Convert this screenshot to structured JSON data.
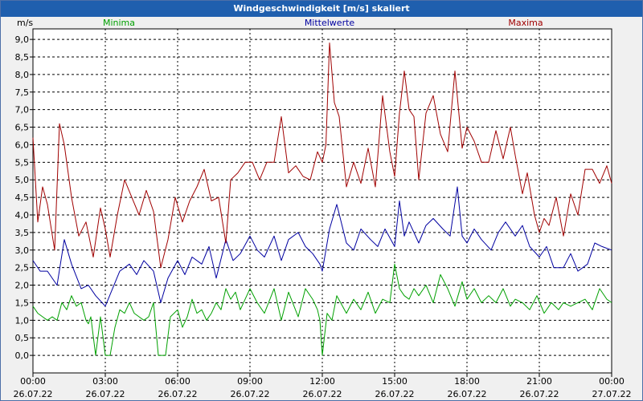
{
  "window": {
    "title": "Windgeschwindigkeit [m/s] skaliert"
  },
  "chart_data": {
    "type": "line",
    "title": "Windgeschwindigkeit [m/s] skaliert",
    "ylabel": "m/s",
    "xlabel": "",
    "ylim": [
      -0.5,
      9.3
    ],
    "xlim": [
      0,
      24
    ],
    "yticks": [
      "0,0",
      "0,5",
      "1,0",
      "1,5",
      "2,0",
      "2,5",
      "3,0",
      "3,5",
      "4,0",
      "4,5",
      "5,0",
      "5,5",
      "6,0",
      "6,5",
      "7,0",
      "7,5",
      "8,0",
      "8,5",
      "9,0"
    ],
    "xticks": [
      {
        "time": "00:00",
        "date": "26.07.22"
      },
      {
        "time": "03:00",
        "date": "26.07.22"
      },
      {
        "time": "06:00",
        "date": "26.07.22"
      },
      {
        "time": "09:00",
        "date": "26.07.22"
      },
      {
        "time": "12:00",
        "date": "26.07.22"
      },
      {
        "time": "15:00",
        "date": "26.07.22"
      },
      {
        "time": "18:00",
        "date": "26.07.22"
      },
      {
        "time": "21:00",
        "date": "26.07.22"
      },
      {
        "time": "00:00",
        "date": "27.07.22"
      }
    ],
    "grid": true,
    "legend_position": "top",
    "series": [
      {
        "name": "Minima",
        "color": "#00a000",
        "x": [
          0,
          0.2,
          0.4,
          0.6,
          0.8,
          1,
          1.2,
          1.4,
          1.6,
          1.8,
          2,
          2.2,
          2.3,
          2.4,
          2.6,
          2.8,
          3,
          3.2,
          3.4,
          3.6,
          3.8,
          4,
          4.2,
          4.4,
          4.6,
          4.8,
          5,
          5.2,
          5.5,
          5.7,
          6,
          6.2,
          6.4,
          6.6,
          6.8,
          7,
          7.2,
          7.4,
          7.6,
          7.8,
          8,
          8.2,
          8.4,
          8.6,
          8.8,
          9,
          9.3,
          9.6,
          10,
          10.3,
          10.6,
          11,
          11.3,
          11.6,
          11.8,
          11.9,
          12,
          12.2,
          12.4,
          12.6,
          13,
          13.3,
          13.6,
          13.9,
          14.2,
          14.5,
          14.8,
          15,
          15.2,
          15.4,
          15.6,
          15.8,
          16,
          16.3,
          16.6,
          16.9,
          17.2,
          17.5,
          17.8,
          18,
          18.3,
          18.6,
          18.9,
          19.2,
          19.5,
          19.8,
          20,
          20.3,
          20.6,
          20.9,
          21.2,
          21.5,
          21.8,
          22,
          22.3,
          22.6,
          22.9,
          23.2,
          23.5,
          23.8,
          24
        ],
        "values": [
          1.4,
          1.2,
          1.1,
          1.0,
          1.1,
          1.0,
          1.5,
          1.3,
          1.7,
          1.4,
          1.5,
          1.0,
          0.9,
          1.1,
          0.0,
          1.1,
          0.0,
          0.0,
          0.8,
          1.3,
          1.2,
          1.5,
          1.2,
          1.1,
          1.0,
          1.1,
          1.5,
          0.0,
          0.0,
          1.1,
          1.3,
          0.8,
          1.1,
          1.6,
          1.2,
          1.3,
          1.0,
          1.2,
          1.5,
          1.3,
          1.9,
          1.6,
          1.8,
          1.3,
          1.6,
          1.9,
          1.5,
          1.2,
          1.9,
          1.0,
          1.8,
          1.1,
          1.9,
          1.6,
          1.3,
          1.0,
          0.0,
          1.2,
          1.0,
          1.7,
          1.2,
          1.6,
          1.3,
          1.8,
          1.2,
          1.6,
          1.5,
          2.6,
          1.9,
          1.7,
          1.6,
          1.9,
          1.7,
          2.0,
          1.5,
          2.3,
          1.9,
          1.4,
          2.1,
          1.6,
          1.9,
          1.5,
          1.7,
          1.5,
          1.9,
          1.4,
          1.6,
          1.5,
          1.3,
          1.7,
          1.2,
          1.5,
          1.3,
          1.5,
          1.4,
          1.5,
          1.6,
          1.3,
          1.9,
          1.6,
          1.5
        ]
      },
      {
        "name": "Mittelwerte",
        "color": "#0000a0",
        "x": [
          0,
          0.3,
          0.6,
          1,
          1.3,
          1.6,
          2,
          2.3,
          2.6,
          3,
          3.3,
          3.6,
          4,
          4.3,
          4.6,
          5,
          5.3,
          5.6,
          6,
          6.3,
          6.6,
          7,
          7.3,
          7.6,
          8,
          8.3,
          8.6,
          9,
          9.3,
          9.6,
          10,
          10.3,
          10.6,
          11,
          11.3,
          11.6,
          11.9,
          12,
          12.3,
          12.6,
          13,
          13.3,
          13.6,
          14,
          14.3,
          14.6,
          15,
          15.2,
          15.4,
          15.6,
          16,
          16.3,
          16.6,
          17,
          17.3,
          17.6,
          17.8,
          18,
          18.3,
          18.6,
          19,
          19.3,
          19.6,
          20,
          20.3,
          20.6,
          21,
          21.3,
          21.6,
          22,
          22.3,
          22.6,
          23,
          23.3,
          23.6,
          24
        ],
        "values": [
          2.7,
          2.4,
          2.4,
          2.0,
          3.3,
          2.6,
          1.9,
          2.0,
          1.7,
          1.4,
          1.9,
          2.4,
          2.6,
          2.3,
          2.7,
          2.4,
          1.5,
          2.2,
          2.7,
          2.3,
          2.8,
          2.6,
          3.1,
          2.2,
          3.3,
          2.7,
          2.9,
          3.4,
          3.0,
          2.8,
          3.4,
          2.7,
          3.3,
          3.5,
          3.1,
          2.9,
          2.6,
          2.4,
          3.6,
          4.3,
          3.2,
          3.0,
          3.6,
          3.3,
          3.1,
          3.6,
          3.1,
          4.4,
          3.4,
          3.8,
          3.2,
          3.7,
          3.9,
          3.6,
          3.4,
          4.8,
          3.4,
          3.2,
          3.6,
          3.3,
          3.0,
          3.5,
          3.8,
          3.4,
          3.7,
          3.1,
          2.8,
          3.1,
          2.5,
          2.5,
          2.9,
          2.4,
          2.6,
          3.2,
          3.1,
          3.0
        ]
      },
      {
        "name": "Maxima",
        "color": "#a00000",
        "x": [
          0,
          0.2,
          0.4,
          0.6,
          0.9,
          1.1,
          1.3,
          1.6,
          1.9,
          2.2,
          2.5,
          2.8,
          3,
          3.2,
          3.5,
          3.8,
          4.1,
          4.4,
          4.7,
          5,
          5.3,
          5.6,
          5.9,
          6.2,
          6.5,
          6.8,
          7.1,
          7.4,
          7.7,
          8,
          8.2,
          8.5,
          8.8,
          9.1,
          9.4,
          9.7,
          10,
          10.3,
          10.6,
          10.9,
          11.2,
          11.5,
          11.8,
          12,
          12.15,
          12.3,
          12.5,
          12.7,
          13,
          13.3,
          13.6,
          13.9,
          14.2,
          14.5,
          14.8,
          15,
          15.2,
          15.4,
          15.6,
          15.8,
          16,
          16.3,
          16.6,
          16.9,
          17.2,
          17.5,
          17.8,
          18,
          18.3,
          18.6,
          18.9,
          19.2,
          19.5,
          19.8,
          20,
          20.3,
          20.5,
          20.8,
          21,
          21.2,
          21.4,
          21.7,
          22,
          22.3,
          22.6,
          22.9,
          23.2,
          23.5,
          23.8,
          24
        ],
        "values": [
          6.2,
          3.8,
          4.8,
          4.3,
          3.0,
          6.6,
          6.0,
          4.5,
          3.4,
          3.8,
          2.8,
          4.2,
          3.6,
          2.8,
          4.0,
          5.0,
          4.5,
          4.0,
          4.7,
          4.1,
          2.5,
          3.3,
          4.5,
          3.8,
          4.4,
          4.8,
          5.3,
          4.4,
          4.5,
          3.2,
          5.0,
          5.2,
          5.5,
          5.5,
          5.0,
          5.5,
          5.5,
          6.8,
          5.2,
          5.4,
          5.1,
          5.0,
          5.8,
          5.5,
          6.0,
          8.9,
          7.2,
          6.8,
          4.8,
          5.5,
          4.9,
          5.9,
          4.8,
          7.4,
          5.8,
          5.1,
          6.9,
          8.1,
          7.0,
          6.8,
          5.0,
          6.9,
          7.4,
          6.3,
          5.8,
          8.1,
          5.9,
          6.5,
          6.1,
          5.5,
          5.5,
          6.4,
          5.6,
          6.5,
          5.7,
          4.6,
          5.2,
          4.0,
          3.5,
          3.9,
          3.7,
          4.5,
          3.4,
          4.6,
          4.0,
          5.3,
          5.3,
          4.9,
          5.4,
          4.9
        ]
      }
    ]
  }
}
